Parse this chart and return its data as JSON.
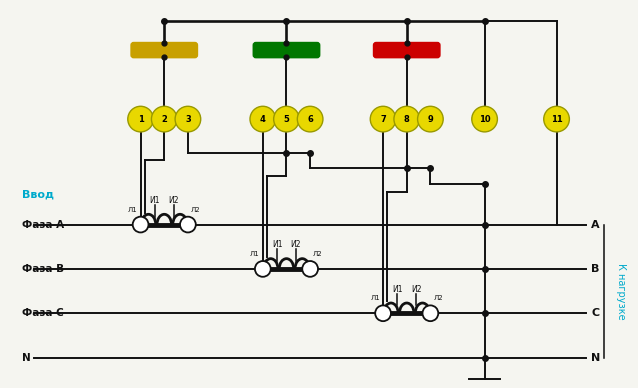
{
  "bg_color": "#f5f5f0",
  "fig_w": 6.38,
  "fig_h": 3.88,
  "left_labels": [
    "Ввод",
    "Фаза А",
    "Фаза В",
    "Фаза С",
    "N"
  ],
  "right_labels": [
    "A",
    "B",
    "C",
    "N"
  ],
  "right_vertical_label": "К нагрузке",
  "terminal_color": "#e8d800",
  "wire_color": "#111111",
  "label_color_vvod": "#00aacc",
  "label_color_right": "#00aacc",
  "fuse_colors": [
    "#c8a000",
    "#007700",
    "#cc0000"
  ]
}
